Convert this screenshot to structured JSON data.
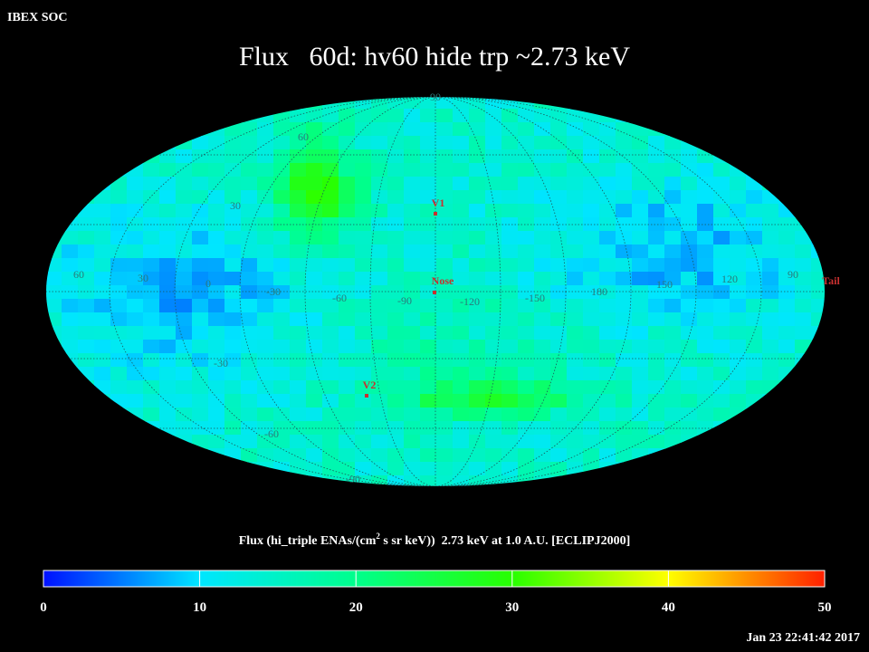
{
  "header": {
    "label": "IBEX SOC",
    "title": "Flux   60d: hv60 hide trp ~2.73 keV",
    "timestamp": "Jan 23 22:41:42 2017"
  },
  "map": {
    "grid_labels": [
      "90",
      "60",
      "30",
      "60",
      "30",
      "0",
      "-30",
      "-60",
      "-90",
      "-120",
      "-150",
      "180",
      "150",
      "120",
      "90",
      "-30",
      "-60",
      "-90"
    ],
    "markers": [
      "V1",
      "Nose",
      "Tail",
      "V2"
    ]
  },
  "colorbar": {
    "title_parts": [
      "Flux (hi_triple ENAs/(cm",
      "2",
      " s sr keV))  2.73 keV at 1.0 A.U. [ECLIPJ2000]"
    ],
    "range": [
      0,
      50
    ],
    "ticks": [
      0,
      10,
      20,
      30,
      40,
      50
    ]
  }
}
